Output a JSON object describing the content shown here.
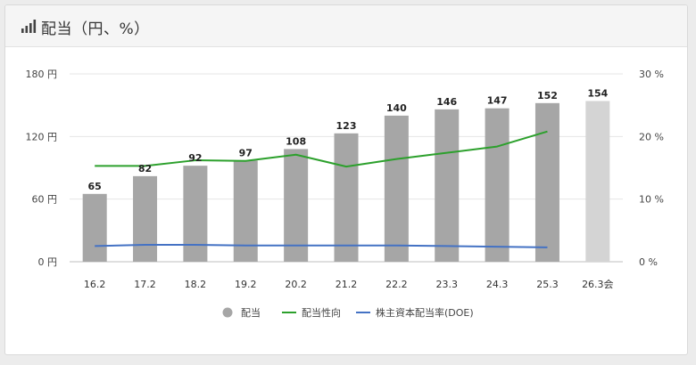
{
  "header": {
    "title": "配当（円、%）",
    "icon": "signal-bars-icon"
  },
  "chart_data": {
    "type": "bar",
    "categories": [
      "16.2",
      "17.2",
      "18.2",
      "19.2",
      "20.2",
      "21.2",
      "22.2",
      "23.3",
      "24.3",
      "25.3",
      "26.3会"
    ],
    "series": [
      {
        "name": "配当",
        "axis": "left",
        "kind": "bar",
        "values": [
          65,
          82,
          92,
          97,
          108,
          123,
          140,
          146,
          147,
          152,
          154
        ],
        "labels": [
          "65",
          "82",
          "92",
          "97",
          "108",
          "123",
          "140",
          "146",
          "147",
          "152",
          "154"
        ],
        "color": "#a6a6a6",
        "forecast_color": "#d4d4d4",
        "forecast_index": 10
      },
      {
        "name": "配当性向",
        "axis": "right",
        "kind": "line",
        "values": [
          15.3,
          15.3,
          16.2,
          16.1,
          17.1,
          15.2,
          16.4,
          17.4,
          18.4,
          20.8,
          null
        ],
        "color": "#2ca02c"
      },
      {
        "name": "株主資本配当率(DOE)",
        "axis": "right",
        "kind": "line",
        "values": [
          2.5,
          2.7,
          2.7,
          2.6,
          2.6,
          2.6,
          2.6,
          2.5,
          2.4,
          2.3,
          null
        ],
        "color": "#4472c4"
      }
    ],
    "y_left": {
      "ticks": [
        0,
        60,
        120,
        180
      ],
      "tick_labels": [
        "0 円",
        "60 円",
        "120 円",
        "180 円"
      ],
      "range": [
        0,
        180
      ]
    },
    "y_right": {
      "ticks": [
        0,
        10,
        20,
        30
      ],
      "tick_labels": [
        "0 %",
        "10 %",
        "20 %",
        "30 %"
      ],
      "range": [
        0,
        30
      ]
    },
    "grid": true,
    "legend": {
      "placement": "bottom-center",
      "items": [
        {
          "label": "配当",
          "marker": "circle",
          "color": "#a6a6a6"
        },
        {
          "label": "配当性向",
          "marker": "line",
          "color": "#2ca02c"
        },
        {
          "label": "株主資本配当率(DOE)",
          "marker": "line",
          "color": "#4472c4"
        }
      ]
    }
  }
}
